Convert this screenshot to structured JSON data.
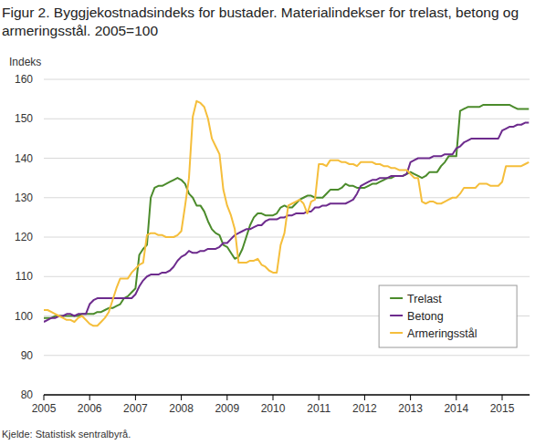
{
  "chart_data": {
    "type": "line",
    "title": "Figur 2. Byggjekostnadsindeks for bustader. Materialindekser for trelast, betong og armeringsstål. 2005=100",
    "y_label": "Indeks",
    "source": "Kjelde: Statistisk sentralbyrå.",
    "x": [
      2005,
      2005.083,
      2005.167,
      2005.25,
      2005.333,
      2005.417,
      2005.5,
      2005.583,
      2005.667,
      2005.75,
      2005.833,
      2005.917,
      2006,
      2006.083,
      2006.167,
      2006.25,
      2006.333,
      2006.417,
      2006.5,
      2006.583,
      2006.667,
      2006.75,
      2006.833,
      2006.917,
      2007,
      2007.083,
      2007.167,
      2007.25,
      2007.333,
      2007.417,
      2007.5,
      2007.583,
      2007.667,
      2007.75,
      2007.833,
      2007.917,
      2008,
      2008.083,
      2008.167,
      2008.25,
      2008.333,
      2008.417,
      2008.5,
      2008.583,
      2008.667,
      2008.75,
      2008.833,
      2008.917,
      2009,
      2009.083,
      2009.167,
      2009.25,
      2009.333,
      2009.417,
      2009.5,
      2009.583,
      2009.667,
      2009.75,
      2009.833,
      2009.917,
      2010,
      2010.083,
      2010.167,
      2010.25,
      2010.333,
      2010.417,
      2010.5,
      2010.583,
      2010.667,
      2010.75,
      2010.833,
      2010.917,
      2011,
      2011.083,
      2011.167,
      2011.25,
      2011.333,
      2011.417,
      2011.5,
      2011.583,
      2011.667,
      2011.75,
      2011.833,
      2011.917,
      2012,
      2012.083,
      2012.167,
      2012.25,
      2012.333,
      2012.417,
      2012.5,
      2012.583,
      2012.667,
      2012.75,
      2012.833,
      2012.917,
      2013,
      2013.083,
      2013.167,
      2013.25,
      2013.333,
      2013.417,
      2013.5,
      2013.583,
      2013.667,
      2013.75,
      2013.833,
      2013.917,
      2014,
      2014.083,
      2014.167,
      2014.25,
      2014.333,
      2014.417,
      2014.5,
      2014.583,
      2014.667,
      2014.75,
      2014.833,
      2014.917,
      2015,
      2015.083,
      2015.167,
      2015.25,
      2015.333,
      2015.417,
      2015.5,
      2015.583
    ],
    "series": [
      {
        "name": "Trelast",
        "color": "#4b8b2b",
        "values": [
          99.5,
          99.5,
          99.5,
          100,
          100,
          100,
          100,
          100,
          100,
          100,
          100.5,
          100.5,
          100.5,
          100.5,
          101,
          101,
          101.5,
          102,
          102,
          102.5,
          103,
          104.5,
          105,
          106,
          107,
          115.5,
          117,
          118,
          130,
          132.5,
          133,
          133,
          133.5,
          134,
          134.5,
          135,
          134.5,
          133.5,
          131,
          130,
          128,
          128,
          126.5,
          124,
          122,
          121,
          120.5,
          118,
          117.5,
          116,
          114.5,
          115,
          117,
          120,
          123,
          125,
          126,
          126,
          125.5,
          125.5,
          125.5,
          126,
          127.5,
          128,
          127.5,
          127.5,
          128.5,
          129.5,
          130,
          130.5,
          130.5,
          130,
          130,
          130,
          131,
          132,
          132,
          132,
          132.5,
          133.5,
          133,
          133,
          132.5,
          132.5,
          132.5,
          133,
          133.5,
          133.5,
          134,
          134.5,
          135,
          135,
          135.5,
          135.5,
          135.5,
          136,
          136.5,
          136,
          135.5,
          135,
          135.5,
          136.5,
          136.5,
          136.5,
          138,
          139,
          140.5,
          140.5,
          140.5,
          152,
          152.5,
          153,
          153,
          153,
          153,
          153.5,
          153.5,
          153.5,
          153.5,
          153.5,
          153.5,
          153.5,
          153.5,
          153,
          152.5,
          152.5,
          152.5,
          152.5
        ]
      },
      {
        "name": "Betong",
        "color": "#6d2b8d",
        "values": [
          98.5,
          99,
          99.5,
          99.5,
          100,
          100,
          100.5,
          100.5,
          100,
          100.5,
          100.5,
          100.5,
          103,
          104,
          104.5,
          104.5,
          104.5,
          104.5,
          104.5,
          104.5,
          104.5,
          104.5,
          104.5,
          104.5,
          105.5,
          107.5,
          109,
          110,
          110.5,
          110.5,
          110.5,
          111,
          111,
          111.5,
          112.5,
          114,
          115,
          115.5,
          116.5,
          116,
          116,
          116.5,
          116.5,
          117,
          117,
          117,
          117.5,
          118.5,
          118.5,
          119.5,
          120.5,
          121,
          121.5,
          122,
          122,
          122.5,
          123,
          123,
          124,
          124.5,
          124.5,
          124.5,
          125,
          125,
          125.5,
          125.5,
          126,
          126,
          126,
          126.5,
          126.5,
          127.5,
          127.5,
          128,
          128,
          128.5,
          128.5,
          128.5,
          128.5,
          128.5,
          129,
          129.5,
          131,
          133,
          133.5,
          134,
          134.5,
          134.5,
          135,
          135,
          135,
          135.5,
          135.5,
          135.5,
          135.5,
          136,
          139,
          139.5,
          140,
          140,
          140,
          140,
          140.5,
          140.5,
          140.5,
          141,
          141,
          141,
          142.5,
          143,
          144,
          144.5,
          145,
          145,
          145,
          145,
          145,
          145,
          145,
          145,
          147,
          147.5,
          148,
          148,
          148.5,
          148.5,
          149,
          149
        ]
      },
      {
        "name": "Armeringsstål",
        "color": "#f5be3b",
        "values": [
          101.5,
          101.5,
          101,
          100.5,
          100,
          99.5,
          99,
          99,
          98.5,
          99.5,
          100,
          99,
          98,
          97.5,
          97.5,
          98.5,
          99.5,
          101,
          104,
          107,
          109.5,
          109.5,
          109.5,
          111,
          112,
          113,
          113.5,
          120.5,
          121,
          121,
          120.5,
          120.5,
          120,
          120,
          120,
          120.5,
          121.5,
          128,
          135,
          150.5,
          154.5,
          154,
          153,
          150,
          145,
          143,
          141,
          132,
          128,
          125.5,
          122,
          113.5,
          113.5,
          113.5,
          114,
          114,
          114.5,
          113,
          112.5,
          111.5,
          111,
          111,
          118,
          121,
          128,
          128.5,
          129,
          129.5,
          128.5,
          126,
          129,
          129.5,
          138.5,
          138.5,
          138,
          139.5,
          139.5,
          139.5,
          139,
          139,
          138.5,
          138.5,
          138,
          139,
          139,
          139,
          139,
          138.5,
          138.5,
          138,
          138,
          137.5,
          137.5,
          137,
          137,
          137,
          136,
          135,
          135,
          129,
          128.5,
          129,
          129,
          128.5,
          128.5,
          129,
          129.5,
          130,
          130,
          131,
          132.5,
          132.5,
          132.5,
          132.5,
          133.5,
          133.5,
          133.5,
          133,
          133,
          133,
          134,
          138,
          138,
          138,
          138,
          138,
          138.5,
          139
        ]
      }
    ],
    "xlim": [
      2005,
      2015.6
    ],
    "xticks": [
      2005,
      2006,
      2007,
      2008,
      2009,
      2010,
      2011,
      2012,
      2013,
      2014,
      2015
    ],
    "ylim": [
      80,
      160
    ],
    "yticks": [
      80,
      90,
      100,
      110,
      120,
      130,
      140,
      150,
      160
    ],
    "grid": true,
    "legend": "lower right"
  }
}
